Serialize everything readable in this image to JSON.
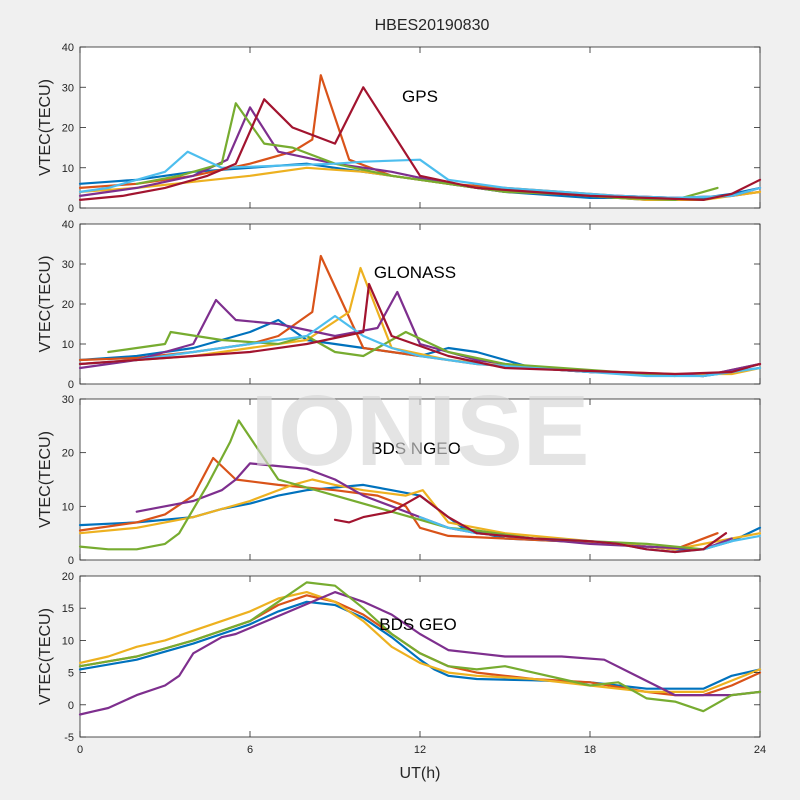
{
  "title": "HBES20190830",
  "watermark": "IONISE",
  "xlabel": "UT(h)",
  "colors": [
    "#0072BD",
    "#D95319",
    "#EDB120",
    "#7E2F8E",
    "#77AC30",
    "#4DBEEE",
    "#A2142F"
  ],
  "chart_data": [
    {
      "type": "line",
      "annotation": "GPS",
      "ylabel": "VTEC(TECU)",
      "xlim": [
        0,
        24
      ],
      "ylim": [
        0,
        40
      ],
      "yticks": [
        0,
        10,
        20,
        30,
        40
      ],
      "series": [
        {
          "color": "#0072BD",
          "x": [
            0,
            1,
            2,
            3,
            4,
            5,
            6,
            7,
            8,
            9,
            10,
            11,
            12,
            13,
            14,
            15,
            16,
            17,
            18,
            19,
            20,
            21,
            22,
            23,
            24
          ],
          "y": [
            6,
            6.5,
            7,
            8,
            9,
            9.5,
            10,
            10.5,
            11,
            10,
            9,
            8,
            7,
            6,
            5,
            4,
            3.5,
            3,
            2.5,
            2.5,
            2,
            2,
            2.5,
            3.5,
            5
          ]
        },
        {
          "color": "#D95319",
          "x": [
            0,
            2,
            4,
            6,
            7.5,
            8.2,
            8.5,
            9.5,
            11,
            13,
            15,
            17,
            19,
            21,
            23,
            24
          ],
          "y": [
            5,
            6,
            8,
            11,
            14,
            17,
            33,
            12,
            8,
            6,
            5,
            4,
            3,
            2.5,
            3,
            4
          ]
        },
        {
          "color": "#EDB120",
          "x": [
            0,
            2,
            4,
            6,
            8,
            10,
            12,
            14,
            16,
            18,
            20,
            22,
            24
          ],
          "y": [
            4,
            5,
            6.5,
            8,
            10,
            9,
            7,
            5,
            4,
            3,
            2,
            2,
            4
          ]
        },
        {
          "color": "#7E2F8E",
          "x": [
            0,
            2,
            4,
            5.2,
            6,
            7,
            9,
            11,
            13,
            15,
            17,
            19,
            21,
            23,
            24
          ],
          "y": [
            3,
            5,
            8,
            12,
            25,
            14,
            11,
            9,
            6,
            4,
            3.5,
            3,
            2.5,
            3,
            5
          ]
        },
        {
          "color": "#77AC30",
          "x": [
            2,
            3.5,
            5,
            5.5,
            6.5,
            7.5,
            9,
            11,
            13,
            15,
            17,
            19,
            21,
            22.5
          ],
          "y": [
            6,
            8,
            11,
            26,
            16,
            15,
            11,
            8,
            6,
            4,
            3.5,
            2.5,
            2,
            5
          ]
        },
        {
          "color": "#4DBEEE",
          "x": [
            0,
            1,
            2,
            3,
            3.8,
            5,
            7,
            9,
            10,
            12,
            13,
            15,
            17,
            19,
            21,
            23,
            24
          ],
          "y": [
            4,
            5,
            7,
            9,
            14,
            10,
            10.5,
            11,
            11.5,
            12,
            7,
            5,
            4,
            3,
            2.5,
            3,
            5
          ]
        },
        {
          "color": "#A2142F",
          "x": [
            0,
            1.5,
            3,
            4.5,
            5.5,
            6.5,
            7.5,
            9,
            10,
            12,
            14,
            16,
            18,
            20,
            22,
            23,
            24
          ],
          "y": [
            2,
            3,
            5,
            8,
            11,
            27,
            20,
            16,
            30,
            8,
            5,
            4,
            3,
            2.5,
            2,
            3.5,
            7
          ]
        }
      ]
    },
    {
      "type": "line",
      "annotation": "GLONASS",
      "ylabel": "VTEC(TECU)",
      "xlim": [
        0,
        24
      ],
      "ylim": [
        0,
        40
      ],
      "yticks": [
        0,
        10,
        20,
        30,
        40
      ],
      "series": [
        {
          "color": "#0072BD",
          "x": [
            0,
            2,
            4,
            6,
            7,
            8,
            10,
            12,
            13,
            14,
            16,
            18,
            20,
            22,
            24
          ],
          "y": [
            6,
            7,
            9,
            13,
            16,
            11,
            9,
            7,
            9,
            8,
            4,
            3,
            2.5,
            2,
            4
          ]
        },
        {
          "color": "#D95319",
          "x": [
            0,
            2,
            4,
            6,
            7,
            8.2,
            8.5,
            10,
            12,
            14,
            16,
            18,
            20,
            22,
            24
          ],
          "y": [
            6,
            6.5,
            8,
            10,
            12,
            18,
            32,
            9,
            7,
            5,
            4,
            3,
            2.5,
            2,
            5
          ]
        },
        {
          "color": "#EDB120",
          "x": [
            0,
            2,
            4,
            6,
            8,
            9.5,
            9.9,
            11,
            13,
            15,
            17,
            19,
            21,
            23,
            24
          ],
          "y": [
            5,
            6,
            7,
            9,
            11,
            18,
            29,
            9,
            6,
            4.5,
            3.5,
            3,
            2.5,
            2.5,
            4
          ]
        },
        {
          "color": "#7E2F8E",
          "x": [
            0,
            2,
            4,
            4.8,
            5.5,
            7,
            9,
            10.5,
            11.2,
            12,
            14,
            16,
            18,
            20,
            22,
            24
          ],
          "y": [
            4,
            6,
            10,
            21,
            16,
            15,
            12,
            14,
            23,
            10,
            6,
            4,
            3,
            2.5,
            2,
            5
          ]
        },
        {
          "color": "#77AC30",
          "x": [
            1,
            2,
            3,
            3.2,
            5,
            7,
            8,
            9,
            10,
            11.5,
            13,
            15,
            17,
            19,
            21
          ],
          "y": [
            8,
            9,
            10,
            13,
            11,
            10,
            12,
            8,
            7,
            13,
            8,
            5,
            4,
            3,
            2
          ]
        },
        {
          "color": "#4DBEEE",
          "x": [
            0,
            2,
            4,
            6,
            8,
            9,
            10,
            11,
            12,
            14,
            16,
            18,
            20,
            22,
            24
          ],
          "y": [
            5,
            6,
            8,
            10,
            12,
            17,
            12,
            9,
            7,
            5,
            4,
            3,
            2,
            2,
            4
          ]
        },
        {
          "color": "#A2142F",
          "x": [
            0,
            2,
            4,
            6,
            8,
            10,
            10.2,
            11,
            13,
            15,
            17,
            19,
            21,
            23,
            24
          ],
          "y": [
            5,
            6,
            7,
            8,
            10,
            13,
            25,
            12,
            7,
            4,
            3.5,
            3,
            2.5,
            3,
            5
          ]
        }
      ]
    },
    {
      "type": "line",
      "annotation": "BDS NGEO",
      "ylabel": "VTEC(TECU)",
      "xlim": [
        0,
        24
      ],
      "ylim": [
        0,
        30
      ],
      "yticks": [
        0,
        10,
        20,
        30
      ],
      "series": [
        {
          "color": "#0072BD",
          "x": [
            0,
            2,
            4,
            5,
            6,
            7,
            8,
            10,
            11,
            12,
            13,
            13.5,
            15,
            17,
            19,
            21,
            22,
            23,
            24
          ],
          "y": [
            6.5,
            7,
            8,
            9.5,
            10.5,
            12,
            13,
            14,
            13,
            12,
            8,
            6,
            4,
            3.5,
            3,
            2,
            2,
            3.5,
            6
          ]
        },
        {
          "color": "#D95319",
          "x": [
            0,
            2,
            3,
            4,
            4.7,
            5.5,
            7,
            9,
            10.5,
            11.5,
            12,
            13,
            15,
            17,
            19,
            21,
            22.5
          ],
          "y": [
            5.5,
            7,
            8.5,
            12,
            19,
            15,
            14,
            13,
            12,
            10,
            6,
            4.5,
            4,
            3.5,
            3,
            2,
            5
          ]
        },
        {
          "color": "#EDB120",
          "x": [
            0,
            2,
            4,
            6,
            7.5,
            8.2,
            9,
            10,
            11.5,
            12.1,
            13,
            15,
            17,
            19,
            21,
            23,
            24
          ],
          "y": [
            5,
            6,
            8,
            11,
            14,
            15,
            14,
            13,
            12,
            13,
            7,
            5,
            4,
            3,
            2,
            4,
            5
          ]
        },
        {
          "color": "#7E2F8E",
          "x": [
            2,
            3,
            4,
            5,
            5.5,
            6,
            7,
            8,
            9,
            10,
            11,
            12,
            13,
            14,
            16,
            18,
            20,
            22,
            23
          ],
          "y": [
            9,
            10,
            11,
            13,
            15,
            18,
            17.5,
            17,
            15,
            12,
            10,
            8,
            6,
            5,
            4,
            3,
            2.5,
            2,
            4
          ]
        },
        {
          "color": "#77AC30",
          "x": [
            0,
            1,
            2,
            3,
            3.5,
            4.5,
            5.3,
            5.6,
            7,
            9,
            11,
            13,
            14,
            16,
            18,
            20,
            22
          ],
          "y": [
            2.5,
            2,
            2,
            3,
            5,
            14,
            22,
            26,
            15,
            12,
            9,
            6,
            5.5,
            4,
            3.5,
            3,
            2
          ]
        },
        {
          "color": "#4DBEEE",
          "x": [
            12,
            13,
            14,
            15,
            16,
            17,
            18,
            19,
            20,
            21,
            22,
            23,
            24
          ],
          "y": [
            8,
            6,
            5,
            4.5,
            4,
            3.8,
            3.5,
            3,
            2,
            1.5,
            2,
            3.5,
            4.5
          ]
        },
        {
          "color": "#A2142F",
          "x": [
            9,
            9.5,
            10,
            11,
            12,
            13,
            14,
            16,
            18,
            19,
            20,
            21,
            22,
            22.8
          ],
          "y": [
            7.5,
            7,
            8,
            9,
            12,
            8,
            5,
            4,
            3.5,
            3,
            2,
            1.5,
            2,
            5
          ]
        }
      ]
    },
    {
      "type": "line",
      "annotation": "BDS GEO",
      "ylabel": "VTEC(TECU)",
      "xlim": [
        0,
        24
      ],
      "ylim": [
        -5,
        20
      ],
      "yticks": [
        -5,
        0,
        5,
        10,
        15,
        20
      ],
      "series": [
        {
          "color": "#0072BD",
          "x": [
            0,
            2,
            4,
            6,
            7,
            8,
            9,
            10,
            11,
            12,
            12.5,
            13,
            14,
            16,
            18,
            20,
            21,
            22,
            23,
            24
          ],
          "y": [
            5.5,
            7,
            9.5,
            12.5,
            14.5,
            16,
            15.5,
            13.5,
            10.5,
            7,
            5.5,
            4.5,
            4,
            3.8,
            3.5,
            2.5,
            2.5,
            2.5,
            4.5,
            5.5
          ]
        },
        {
          "color": "#D95319",
          "x": [
            0,
            2,
            4,
            6,
            7,
            8,
            9,
            10,
            11,
            12,
            13,
            14,
            15,
            16,
            18,
            20,
            21,
            22,
            23,
            24
          ],
          "y": [
            6,
            7.5,
            10,
            13,
            15.5,
            17,
            16,
            14,
            11,
            8,
            6,
            5,
            4.5,
            4,
            3.5,
            2,
            1.5,
            1.5,
            3,
            5
          ]
        },
        {
          "color": "#EDB120",
          "x": [
            0,
            1,
            2,
            3,
            4,
            5,
            6,
            7,
            8,
            9,
            10,
            11,
            12,
            13,
            14,
            16,
            18,
            20,
            22,
            24
          ],
          "y": [
            6.5,
            7.5,
            9,
            10,
            11.5,
            13,
            14.5,
            16.5,
            17.5,
            16,
            13,
            9,
            6.5,
            5,
            4.5,
            4,
            3,
            2,
            2,
            5.5
          ]
        },
        {
          "color": "#7E2F8E",
          "x": [
            0,
            0.5,
            1,
            2,
            3,
            3.5,
            4,
            5,
            5.5,
            9,
            10,
            11,
            12,
            13,
            14,
            15,
            16,
            17,
            18.5,
            21,
            22,
            23,
            24
          ],
          "y": [
            -1.5,
            -1,
            -0.5,
            1.5,
            3,
            4.5,
            8,
            10.5,
            11,
            17.5,
            16,
            14,
            11,
            8.5,
            8,
            7.5,
            7.5,
            7.5,
            7,
            1.5,
            1.5,
            1.5,
            2
          ]
        },
        {
          "color": "#77AC30",
          "x": [
            0,
            2,
            4,
            6,
            7,
            8,
            9,
            10,
            11,
            12,
            13,
            14,
            15,
            16,
            17,
            18,
            19,
            20,
            21,
            22,
            23,
            24
          ],
          "y": [
            6,
            7.5,
            10,
            13,
            16,
            19,
            18.5,
            15,
            11,
            8,
            6,
            5.5,
            6,
            5,
            4,
            3,
            3.5,
            1,
            0.5,
            -1,
            1.5,
            2
          ]
        }
      ]
    }
  ],
  "xticks": [
    0,
    6,
    12,
    18,
    24
  ]
}
